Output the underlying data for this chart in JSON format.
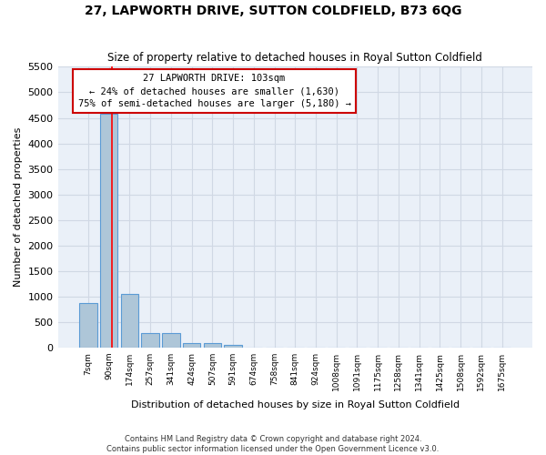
{
  "title": "27, LAPWORTH DRIVE, SUTTON COLDFIELD, B73 6QG",
  "subtitle": "Size of property relative to detached houses in Royal Sutton Coldfield",
  "xlabel": "Distribution of detached houses by size in Royal Sutton Coldfield",
  "ylabel": "Number of detached properties",
  "footnote1": "Contains HM Land Registry data © Crown copyright and database right 2024.",
  "footnote2": "Contains public sector information licensed under the Open Government Licence v3.0.",
  "bin_labels": [
    "7sqm",
    "90sqm",
    "174sqm",
    "257sqm",
    "341sqm",
    "424sqm",
    "507sqm",
    "591sqm",
    "674sqm",
    "758sqm",
    "841sqm",
    "924sqm",
    "1008sqm",
    "1091sqm",
    "1175sqm",
    "1258sqm",
    "1341sqm",
    "1425sqm",
    "1508sqm",
    "1592sqm",
    "1675sqm"
  ],
  "bar_values": [
    880,
    4580,
    1050,
    285,
    285,
    80,
    80,
    50,
    0,
    0,
    0,
    0,
    0,
    0,
    0,
    0,
    0,
    0,
    0,
    0,
    0
  ],
  "bar_color": "#aec6d8",
  "bar_edge_color": "#5b9bd5",
  "grid_color": "#d0d8e4",
  "background_color": "#eaf0f8",
  "ylim": [
    0,
    5500
  ],
  "yticks": [
    0,
    500,
    1000,
    1500,
    2000,
    2500,
    3000,
    3500,
    4000,
    4500,
    5000,
    5500
  ],
  "red_line_x": 1.15,
  "annotation_text": "27 LAPWORTH DRIVE: 103sqm\n← 24% of detached houses are smaller (1,630)\n75% of semi-detached houses are larger (5,180) →",
  "annotation_box_color": "#cc0000"
}
